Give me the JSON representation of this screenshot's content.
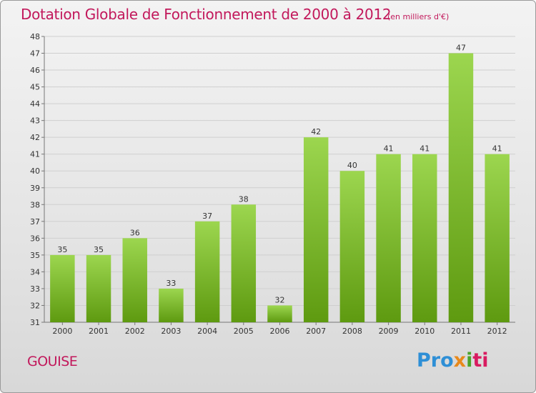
{
  "title": "Dotation Globale de Fonctionnement de 2000 à 2012",
  "subtitle": "(en milliers d'€)",
  "commune": "GOUISE",
  "logo": {
    "p1": "Pro",
    "p2": "x",
    "p3": "i",
    "p4": "ti"
  },
  "colors": {
    "bar_top": "#9cd64f",
    "bar_bottom": "#5e9a10",
    "title": "#c2185b"
  },
  "chart_data": {
    "type": "bar",
    "title": "Dotation Globale de Fonctionnement de 2000 à 2012",
    "subtitle": "(en milliers d'€)",
    "xlabel": "",
    "ylabel": "",
    "categories": [
      "2000",
      "2001",
      "2002",
      "2003",
      "2004",
      "2005",
      "2006",
      "2007",
      "2008",
      "2009",
      "2010",
      "2011",
      "2012"
    ],
    "values": [
      35,
      35,
      36,
      33,
      37,
      38,
      32,
      42,
      40,
      41,
      41,
      47,
      41
    ],
    "ylim": [
      31,
      48
    ],
    "yticks": [
      31,
      32,
      33,
      34,
      35,
      36,
      37,
      38,
      39,
      40,
      41,
      42,
      43,
      44,
      45,
      46,
      47,
      48
    ],
    "grid": true,
    "legend": "none"
  }
}
